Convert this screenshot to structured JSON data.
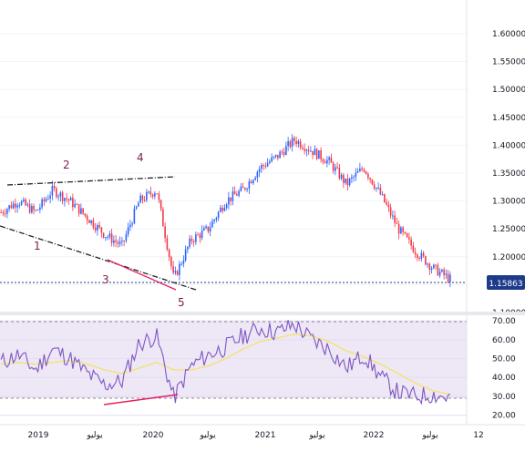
{
  "price_pane": {
    "y_ticks": [
      "1.60000",
      "1.55000",
      "1.50000",
      "1.45000",
      "1.40000",
      "1.35000",
      "1.30000",
      "1.25000",
      "1.20000",
      "1.15000",
      "1.10000"
    ],
    "current_price": "1.15863",
    "wave_labels": [
      "1",
      "2",
      "3",
      "4",
      "5"
    ]
  },
  "rsi_pane": {
    "y_ticks": [
      "70.00",
      "60.00",
      "50.00",
      "40.00",
      "30.00",
      "20.00"
    ],
    "upper_band": 70,
    "lower_band": 30
  },
  "time_axis": {
    "labels": [
      "2019",
      "يوليو",
      "2020",
      "يوليو",
      "2021",
      "يوليو",
      "2022",
      "يوليو",
      "12"
    ]
  },
  "colors": {
    "bull": "#2962ff",
    "bear": "#f23645",
    "rsi_line": "#7e57c2",
    "rsi_ma": "#f5e26b",
    "divergence": "#e91e63",
    "wave_label": "#7b1f4f",
    "price_badge": "#1e3a8a"
  },
  "chart_data": [
    {
      "type": "line",
      "title": "",
      "x_range": [
        "2018-07",
        "2022-12"
      ],
      "ylim": [
        1.1,
        1.6
      ],
      "x": [
        "2018-07",
        "2018-09",
        "2018-11",
        "2019-01",
        "2019-03",
        "2019-05",
        "2019-07",
        "2019-09",
        "2019-11",
        "2020-01",
        "2020-03",
        "2020-05",
        "2020-07",
        "2020-09",
        "2020-11",
        "2021-01",
        "2021-03",
        "2021-05",
        "2021-07",
        "2021-09",
        "2021-11",
        "2022-01",
        "2022-03",
        "2022-05",
        "2022-07",
        "2022-09",
        "2022-10"
      ],
      "series": [
        {
          "values": [
            1.28,
            1.3,
            1.28,
            1.32,
            1.3,
            1.27,
            1.24,
            1.22,
            1.3,
            1.32,
            1.16,
            1.23,
            1.25,
            1.3,
            1.32,
            1.36,
            1.38,
            1.41,
            1.39,
            1.37,
            1.33,
            1.36,
            1.31,
            1.25,
            1.21,
            1.18,
            1.16
          ]
        }
      ]
    },
    {
      "type": "line",
      "title": "",
      "ylim": [
        15,
        72
      ],
      "series": [
        {
          "values": [
            48,
            52,
            44,
            55,
            50,
            42,
            36,
            38,
            58,
            62,
            29,
            46,
            52,
            56,
            62,
            66,
            64,
            68,
            60,
            55,
            45,
            52,
            40,
            32,
            30,
            31,
            29
          ]
        },
        {
          "values": [
            47,
            48,
            47,
            48,
            49,
            47,
            44,
            42,
            45,
            48,
            44,
            44,
            46,
            50,
            55,
            59,
            61,
            63,
            62,
            59,
            54,
            51,
            47,
            42,
            37,
            33,
            31
          ]
        }
      ]
    }
  ]
}
